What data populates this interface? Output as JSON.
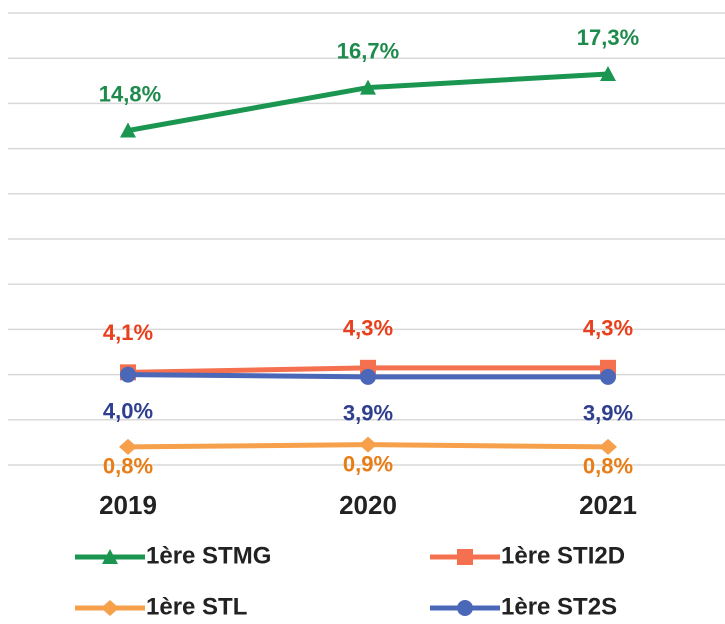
{
  "chart_data": {
    "type": "line",
    "categories": [
      "2019",
      "2020",
      "2021"
    ],
    "series": [
      {
        "name": "1ère STMG",
        "color": "#1a9650",
        "label_color": "#1e8a4c",
        "marker": "triangle",
        "values": [
          14.8,
          16.7,
          17.3
        ],
        "value_labels": [
          "14,8%",
          "16,7%",
          "17,3%"
        ],
        "label_position": "above"
      },
      {
        "name": "1ère STI2D",
        "color": "#f4704f",
        "label_color": "#e8401c",
        "marker": "square",
        "values": [
          4.1,
          4.3,
          4.3
        ],
        "value_labels": [
          "4,1%",
          "4,3%",
          "4,3%"
        ],
        "label_position": "above"
      },
      {
        "name": "1ère STL",
        "color": "#f6a04b",
        "label_color": "#e87d16",
        "marker": "diamond",
        "values": [
          0.8,
          0.9,
          0.8
        ],
        "value_labels": [
          "0,8%",
          "0,9%",
          "0,8%"
        ],
        "label_position": "below"
      },
      {
        "name": "1ère ST2S",
        "color": "#4b68b8",
        "label_color": "#2e3f8f",
        "marker": "circle",
        "values": [
          4.0,
          3.9,
          3.9
        ],
        "value_labels": [
          "4,0%",
          "3,9%",
          "3,9%"
        ],
        "label_position": "below"
      }
    ],
    "ylim": [
      0,
      20
    ],
    "yticks": [
      0,
      2,
      4,
      6,
      8,
      10,
      12,
      14,
      16,
      18,
      20
    ],
    "grid": true,
    "legend": "bottom"
  }
}
